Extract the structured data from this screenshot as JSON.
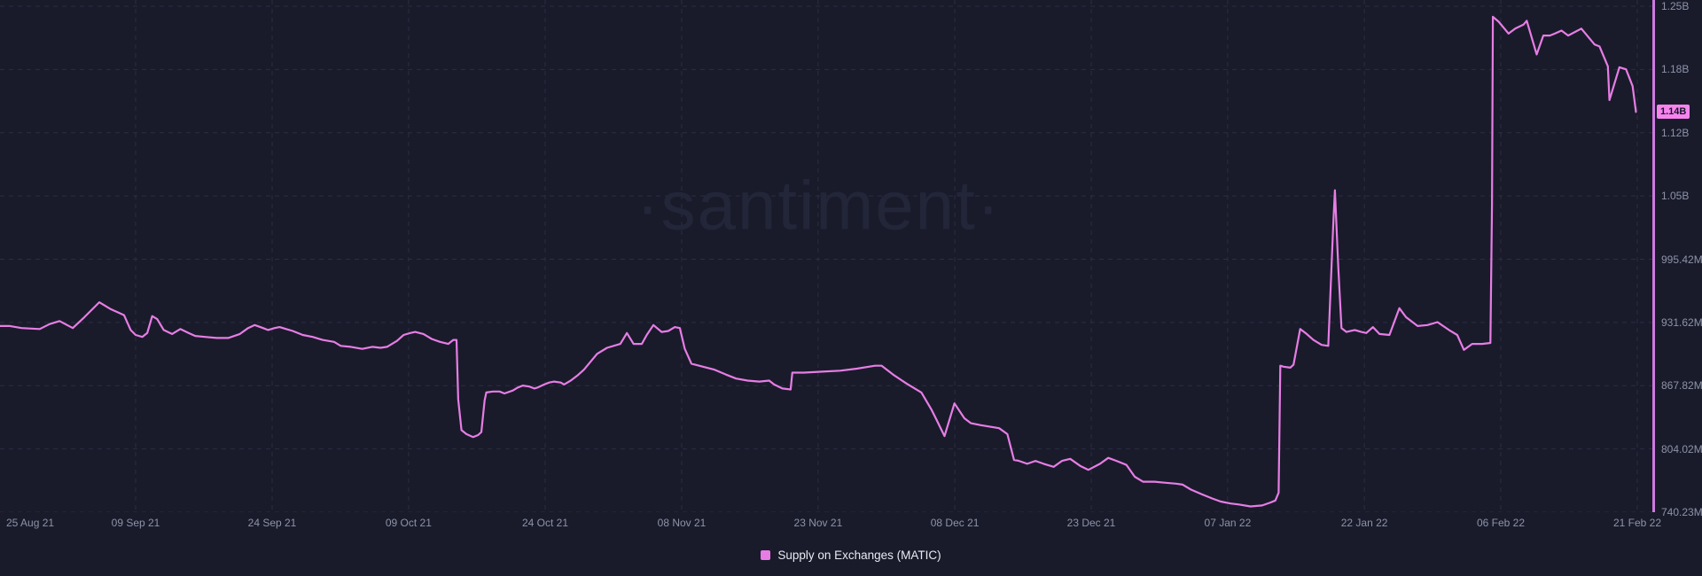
{
  "watermark_text": "·santiment·",
  "legend": {
    "label": "Supply on Exchanges (MATIC)"
  },
  "current_value_label": "1.14B",
  "colors": {
    "background": "#191b2b",
    "series_pink": "#e77de4",
    "axis_line_pink": "#cd7ae0",
    "badge_bg": "#f784ee",
    "badge_text": "#16182a",
    "grid": "#2b2e42",
    "tick_text": "#8d93a7"
  },
  "chart_data": {
    "type": "line",
    "series_name": "Supply on Exchanges (MATIC)",
    "unit": "MATIC (millions)",
    "x_range": [
      "25 Aug 21",
      "21 Feb 22"
    ],
    "ylim": [
      740.23,
      1250.62
    ],
    "grid": "dashed",
    "legend_position": "bottom-center",
    "current_value": 1144,
    "y_ticks": [
      {
        "label": "1.25B",
        "value": 1250.62
      },
      {
        "label": "1.18B",
        "value": 1186.82
      },
      {
        "label": "1.12B",
        "value": 1123.02
      },
      {
        "label": "1.05B",
        "value": 1059.22
      },
      {
        "label": "995.42M",
        "value": 995.42
      },
      {
        "label": "931.62M",
        "value": 931.62
      },
      {
        "label": "867.82M",
        "value": 867.82
      },
      {
        "label": "804.02M",
        "value": 804.02
      },
      {
        "label": "740.23M",
        "value": 740.23
      }
    ],
    "x_ticks": [
      {
        "label": "25 Aug 21",
        "pct": 0.4
      },
      {
        "label": "09 Sep 21",
        "pct": 8.2
      },
      {
        "label": "24 Sep 21",
        "pct": 16.45
      },
      {
        "label": "09 Oct 21",
        "pct": 24.7
      },
      {
        "label": "24 Oct 21",
        "pct": 32.96
      },
      {
        "label": "08 Nov 21",
        "pct": 41.21
      },
      {
        "label": "23 Nov 21",
        "pct": 49.46
      },
      {
        "label": "08 Dec 21",
        "pct": 57.72
      },
      {
        "label": "23 Dec 21",
        "pct": 65.97
      },
      {
        "label": "07 Jan 22",
        "pct": 74.22
      },
      {
        "label": "22 Jan 22",
        "pct": 82.48
      },
      {
        "label": "06 Feb 22",
        "pct": 90.73
      },
      {
        "label": "21 Feb 22",
        "pct": 98.98
      }
    ],
    "points": [
      [
        0,
        928
      ],
      [
        0.6,
        928
      ],
      [
        1.3,
        926
      ],
      [
        2.4,
        925
      ],
      [
        3,
        930
      ],
      [
        3.6,
        933
      ],
      [
        4.4,
        926
      ],
      [
        5.1,
        937
      ],
      [
        6,
        952
      ],
      [
        6.7,
        945
      ],
      [
        7.1,
        942
      ],
      [
        7.5,
        939
      ],
      [
        7.9,
        924
      ],
      [
        8.2,
        919
      ],
      [
        8.6,
        917
      ],
      [
        8.9,
        921
      ],
      [
        9.2,
        938
      ],
      [
        9.5,
        935
      ],
      [
        9.9,
        924
      ],
      [
        10.4,
        920
      ],
      [
        10.9,
        925
      ],
      [
        11.4,
        921
      ],
      [
        11.8,
        918
      ],
      [
        12.4,
        917
      ],
      [
        13.1,
        916
      ],
      [
        13.8,
        916
      ],
      [
        14.5,
        920
      ],
      [
        15,
        926
      ],
      [
        15.4,
        929
      ],
      [
        15.9,
        926
      ],
      [
        16.2,
        924
      ],
      [
        16.6,
        926
      ],
      [
        16.9,
        927
      ],
      [
        17.3,
        925
      ],
      [
        17.7,
        923
      ],
      [
        18.3,
        919
      ],
      [
        18.9,
        917
      ],
      [
        19.5,
        914
      ],
      [
        20.2,
        912
      ],
      [
        20.6,
        908
      ],
      [
        21.2,
        907
      ],
      [
        21.9,
        905
      ],
      [
        22.5,
        907
      ],
      [
        23,
        906
      ],
      [
        23.4,
        907
      ],
      [
        24,
        913
      ],
      [
        24.4,
        919
      ],
      [
        24.8,
        921
      ],
      [
        25.1,
        922
      ],
      [
        25.6,
        920
      ],
      [
        26.1,
        915
      ],
      [
        26.6,
        912
      ],
      [
        27.1,
        910
      ],
      [
        27.4,
        914
      ],
      [
        27.6,
        914
      ],
      [
        27.7,
        854
      ],
      [
        27.9,
        823
      ],
      [
        28.2,
        819
      ],
      [
        28.6,
        816
      ],
      [
        28.9,
        818
      ],
      [
        29.1,
        821
      ],
      [
        29.3,
        853
      ],
      [
        29.4,
        861
      ],
      [
        29.8,
        862
      ],
      [
        30.2,
        862
      ],
      [
        30.5,
        860
      ],
      [
        31,
        863
      ],
      [
        31.3,
        866
      ],
      [
        31.6,
        868
      ],
      [
        32,
        867
      ],
      [
        32.3,
        865
      ],
      [
        32.5,
        866
      ],
      [
        32.9,
        869
      ],
      [
        33.2,
        871
      ],
      [
        33.5,
        872
      ],
      [
        33.9,
        871
      ],
      [
        34.1,
        869
      ],
      [
        34.5,
        873
      ],
      [
        34.9,
        878
      ],
      [
        35.3,
        884
      ],
      [
        35.7,
        892
      ],
      [
        36.1,
        900
      ],
      [
        36.7,
        906
      ],
      [
        37.5,
        910
      ],
      [
        37.9,
        921
      ],
      [
        38.3,
        910
      ],
      [
        38.8,
        910
      ],
      [
        39.1,
        919
      ],
      [
        39.5,
        929
      ],
      [
        40,
        922
      ],
      [
        40.4,
        923
      ],
      [
        40.8,
        927
      ],
      [
        41.1,
        926
      ],
      [
        41.4,
        905
      ],
      [
        41.8,
        890
      ],
      [
        42.5,
        887
      ],
      [
        43.2,
        884
      ],
      [
        43.9,
        879
      ],
      [
        44.5,
        875
      ],
      [
        45.2,
        873
      ],
      [
        45.9,
        872
      ],
      [
        46.5,
        873
      ],
      [
        46.8,
        869
      ],
      [
        47.3,
        865
      ],
      [
        47.8,
        864
      ],
      [
        47.9,
        881
      ],
      [
        48.6,
        881
      ],
      [
        49.7,
        882
      ],
      [
        50.8,
        883
      ],
      [
        51.8,
        885
      ],
      [
        52.9,
        888
      ],
      [
        53.3,
        888
      ],
      [
        54,
        879
      ],
      [
        54.8,
        870
      ],
      [
        55.1,
        867
      ],
      [
        55.7,
        861
      ],
      [
        56.3,
        844
      ],
      [
        56.6,
        834
      ],
      [
        57.1,
        817
      ],
      [
        57.7,
        850
      ],
      [
        58.3,
        835
      ],
      [
        58.7,
        830
      ],
      [
        59.3,
        828
      ],
      [
        60.4,
        825
      ],
      [
        60.9,
        819
      ],
      [
        61.3,
        793
      ],
      [
        61.6,
        792
      ],
      [
        62.1,
        789
      ],
      [
        62.6,
        792
      ],
      [
        63.1,
        789
      ],
      [
        63.7,
        786
      ],
      [
        64.2,
        792
      ],
      [
        64.7,
        794
      ],
      [
        65.3,
        787
      ],
      [
        65.8,
        783
      ],
      [
        66.5,
        789
      ],
      [
        67,
        795
      ],
      [
        67.5,
        792
      ],
      [
        68.1,
        788
      ],
      [
        68.6,
        776
      ],
      [
        69.1,
        771
      ],
      [
        69.8,
        771
      ],
      [
        70.4,
        770
      ],
      [
        71.1,
        769
      ],
      [
        71.5,
        768
      ],
      [
        72,
        763
      ],
      [
        72.7,
        758
      ],
      [
        73.3,
        754
      ],
      [
        73.8,
        751
      ],
      [
        74.4,
        749
      ],
      [
        74.9,
        748
      ],
      [
        75.6,
        746
      ],
      [
        76.3,
        747
      ],
      [
        76.8,
        750
      ],
      [
        77.1,
        752
      ],
      [
        77.3,
        760
      ],
      [
        77.4,
        888
      ],
      [
        77.6,
        887
      ],
      [
        78,
        886
      ],
      [
        78.2,
        889
      ],
      [
        78.6,
        925
      ],
      [
        79,
        920
      ],
      [
        79.4,
        914
      ],
      [
        79.9,
        909
      ],
      [
        80.3,
        908
      ],
      [
        80.6,
        1030
      ],
      [
        80.7,
        1065
      ],
      [
        80.9,
        989
      ],
      [
        81.1,
        926
      ],
      [
        81.4,
        922
      ],
      [
        81.9,
        924
      ],
      [
        82.3,
        922
      ],
      [
        82.6,
        921
      ],
      [
        83,
        927
      ],
      [
        83.4,
        920
      ],
      [
        84,
        919
      ],
      [
        84.6,
        946
      ],
      [
        85,
        937
      ],
      [
        85.7,
        928
      ],
      [
        86.3,
        929
      ],
      [
        86.9,
        932
      ],
      [
        87.6,
        924
      ],
      [
        88.1,
        919
      ],
      [
        88.5,
        904
      ],
      [
        89,
        910
      ],
      [
        89.6,
        910
      ],
      [
        90.1,
        911
      ],
      [
        90.2,
        1050
      ],
      [
        90.25,
        1240
      ],
      [
        90.6,
        1235
      ],
      [
        91.2,
        1223
      ],
      [
        91.6,
        1228
      ],
      [
        92.1,
        1232
      ],
      [
        92.3,
        1236
      ],
      [
        92.9,
        1202
      ],
      [
        93.3,
        1221
      ],
      [
        93.7,
        1221
      ],
      [
        94,
        1223
      ],
      [
        94.4,
        1226
      ],
      [
        94.8,
        1221
      ],
      [
        95.6,
        1228
      ],
      [
        96.4,
        1212
      ],
      [
        96.7,
        1210
      ],
      [
        97.2,
        1190
      ],
      [
        97.3,
        1156
      ],
      [
        97.9,
        1189
      ],
      [
        98.3,
        1187
      ],
      [
        98.7,
        1170
      ],
      [
        98.9,
        1144
      ]
    ]
  }
}
